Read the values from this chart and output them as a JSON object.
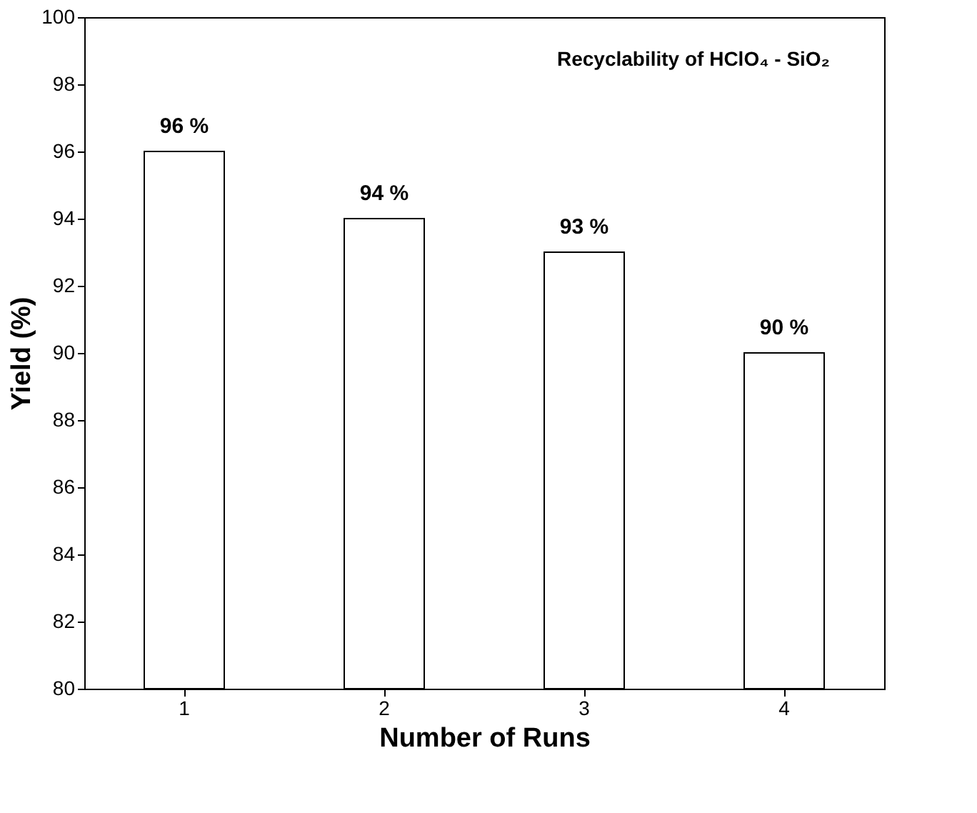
{
  "chart_data": {
    "type": "bar",
    "xlabel": "Number of Runs",
    "ylabel": "Yield (%)",
    "categories": [
      "1",
      "2",
      "3",
      "4"
    ],
    "values": [
      96,
      94,
      93,
      90
    ],
    "value_labels": [
      "96 %",
      "94 %",
      "93 %",
      "90 %"
    ],
    "color": "#ffffff",
    "ylim": [
      80,
      100
    ],
    "yticks": [
      80,
      82,
      84,
      86,
      88,
      90,
      92,
      94,
      96,
      98,
      100
    ],
    "annotations": [
      "Recyclability of HClO₄ - SiO₂"
    ],
    "grid": false
  }
}
